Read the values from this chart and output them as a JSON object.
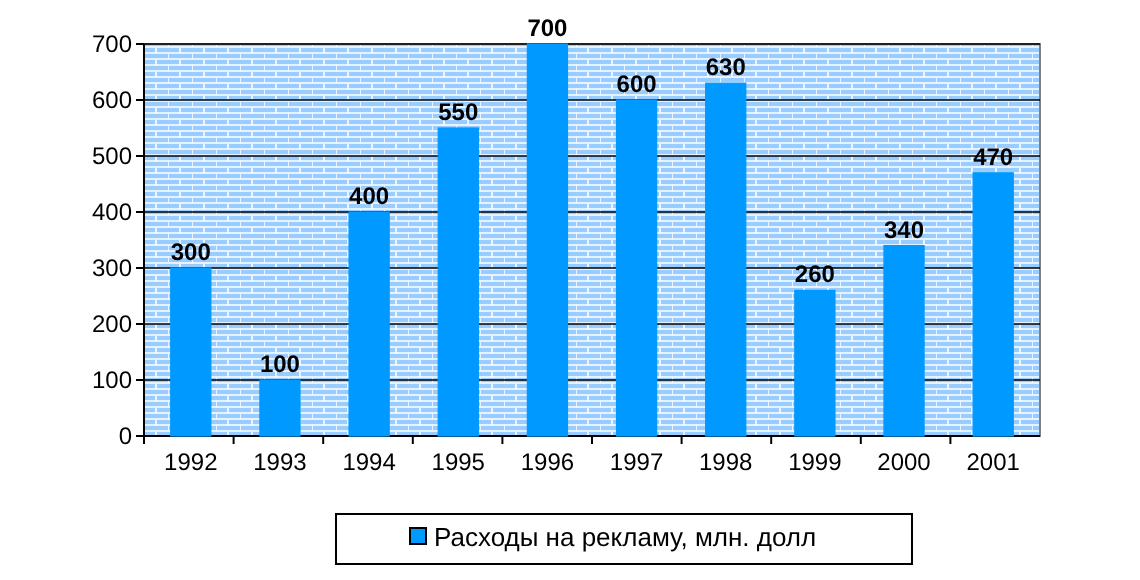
{
  "chart_data": {
    "type": "bar",
    "categories": [
      "1992",
      "1993",
      "1994",
      "1995",
      "1996",
      "1997",
      "1998",
      "1999",
      "2000",
      "2001"
    ],
    "series": [
      {
        "name": "Расходы на рекламу, млн. долл",
        "color": "#0099ff",
        "values": [
          300,
          100,
          400,
          550,
          700,
          600,
          630,
          260,
          340,
          470
        ]
      }
    ],
    "ylim": [
      0,
      700
    ],
    "yticks": [
      0,
      100,
      200,
      300,
      400,
      500,
      600,
      700
    ],
    "grid": "y",
    "data_labels": true,
    "legend": "bottom"
  }
}
